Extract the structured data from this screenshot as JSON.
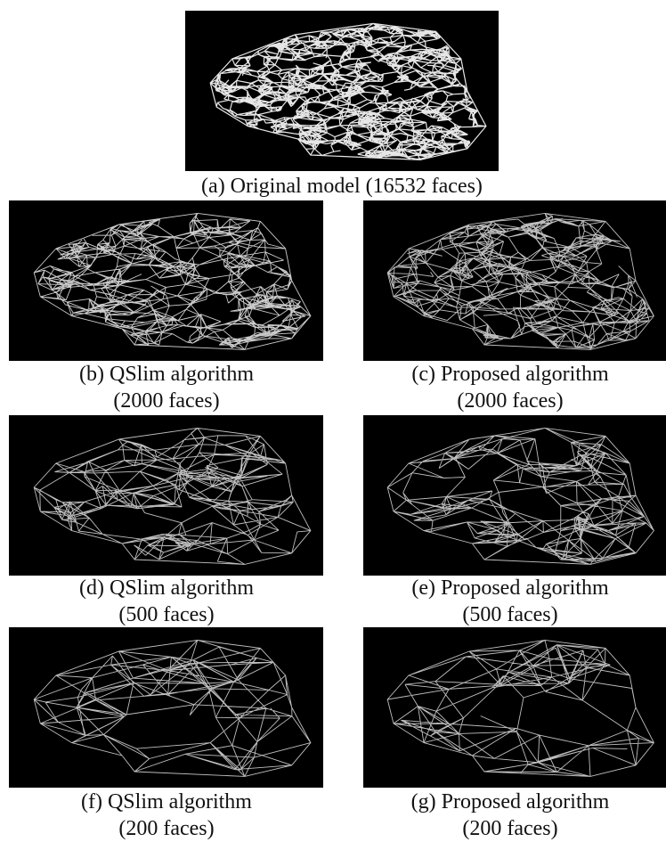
{
  "panels": [
    {
      "lines": [
        "(a) Original model (16532 faces)"
      ]
    },
    {
      "lines": [
        "(b) QSlim algorithm",
        "(2000 faces)"
      ]
    },
    {
      "lines": [
        "(c) Proposed algorithm",
        "(2000 faces)"
      ]
    },
    {
      "lines": [
        "(d) QSlim algorithm",
        "(500 faces)"
      ]
    },
    {
      "lines": [
        "(e) Proposed algorithm",
        "(500 faces)"
      ]
    },
    {
      "lines": [
        "(f) QSlim algorithm",
        "(200 faces)"
      ]
    },
    {
      "lines": [
        "(g) Proposed algorithm",
        "(200 faces)"
      ]
    }
  ]
}
